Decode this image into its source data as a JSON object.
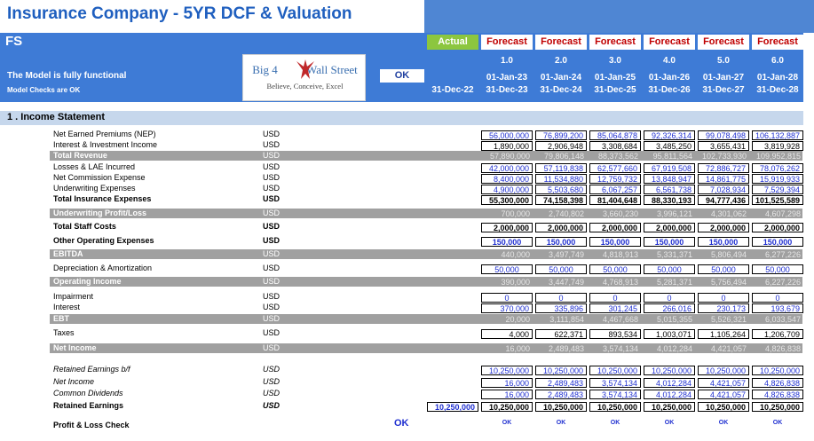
{
  "title": "Insurance Company - 5YR DCF & Valuation",
  "header": {
    "sheet": "FS",
    "model_status": "The Model is fully functional",
    "model_checks": "Model Checks are OK",
    "ok_label": "OK",
    "logo": {
      "brand_left": "Big 4",
      "brand_right": "Wall Street",
      "tagline": "Believe, Conceive, Excel",
      "icon": "eagle-icon"
    }
  },
  "columns": [
    {
      "head": "Actual",
      "period": "",
      "start": "",
      "end": "31-Dec-22",
      "kind": "actual"
    },
    {
      "head": "Forecast",
      "period": "1.0",
      "start": "01-Jan-23",
      "end": "31-Dec-23",
      "kind": "forecast"
    },
    {
      "head": "Forecast",
      "period": "2.0",
      "start": "01-Jan-24",
      "end": "31-Dec-24",
      "kind": "forecast"
    },
    {
      "head": "Forecast",
      "period": "3.0",
      "start": "01-Jan-25",
      "end": "31-Dec-25",
      "kind": "forecast"
    },
    {
      "head": "Forecast",
      "period": "4.0",
      "start": "01-Jan-26",
      "end": "31-Dec-26",
      "kind": "forecast"
    },
    {
      "head": "Forecast",
      "period": "5.0",
      "start": "01-Jan-27",
      "end": "31-Dec-27",
      "kind": "forecast"
    },
    {
      "head": "Forecast",
      "period": "6.0",
      "start": "01-Jan-28",
      "end": "31-Dec-28",
      "kind": "forecast"
    }
  ],
  "section": "1 .  Income Statement",
  "rows": [
    {
      "label": "Net Earned Premiums (NEP)",
      "unit": "USD",
      "style": "normal",
      "color": "blue",
      "values": [
        "",
        "56,000,000",
        "76,899,200",
        "85,064,878",
        "92,326,314",
        "99,078,498",
        "106,132,887"
      ]
    },
    {
      "label": "Interest & Investment Income",
      "unit": "USD",
      "style": "normal",
      "color": "black",
      "values": [
        "",
        "1,890,000",
        "2,906,948",
        "3,308,684",
        "3,485,250",
        "3,655,431",
        "3,819,928"
      ]
    },
    {
      "label": "Total Revenue",
      "unit": "USD",
      "style": "grey",
      "color": "grey",
      "values": [
        "",
        "57,890,000",
        "79,806,148",
        "88,373,562",
        "95,811,564",
        "102,733,930",
        "109,952,815"
      ]
    },
    {
      "label": "Losses & LAE Incurred",
      "unit": "USD",
      "style": "normal",
      "color": "blue",
      "values": [
        "",
        "42,000,000",
        "57,119,838",
        "62,577,660",
        "67,919,508",
        "72,886,727",
        "78,076,262"
      ]
    },
    {
      "label": "Net Commission Expense",
      "unit": "USD",
      "style": "normal",
      "color": "blue",
      "values": [
        "",
        "8,400,000",
        "11,534,880",
        "12,759,732",
        "13,848,947",
        "14,861,775",
        "15,919,933"
      ]
    },
    {
      "label": "Underwriting Expenses",
      "unit": "USD",
      "style": "normal",
      "color": "blue",
      "values": [
        "",
        "4,900,000",
        "5,503,680",
        "6,067,257",
        "6,561,738",
        "7,028,934",
        "7,529,394"
      ]
    },
    {
      "label": "Total Insurance Expenses",
      "unit": "USD",
      "style": "bold",
      "color": "black",
      "values": [
        "",
        "55,300,000",
        "74,158,398",
        "81,404,648",
        "88,330,193",
        "94,777,436",
        "101,525,589"
      ]
    },
    {
      "label": "Underwriting Profit/Loss",
      "unit": "USD",
      "style": "grey",
      "color": "grey",
      "values": [
        "",
        "700,000",
        "2,740,802",
        "3,660,230",
        "3,996,121",
        "4,301,062",
        "4,607,298"
      ]
    },
    {
      "label": "Total Staff Costs",
      "unit": "USD",
      "style": "bold",
      "color": "black",
      "values": [
        "",
        "2,000,000",
        "2,000,000",
        "2,000,000",
        "2,000,000",
        "2,000,000",
        "2,000,000"
      ]
    },
    {
      "label": "Other Operating Expenses",
      "unit": "USD",
      "style": "bold",
      "color": "blue",
      "values": [
        "",
        "150,000",
        "150,000",
        "150,000",
        "150,000",
        "150,000",
        "150,000"
      ]
    },
    {
      "label": "EBITDA",
      "unit": "USD",
      "style": "grey",
      "color": "grey",
      "values": [
        "",
        "440,000",
        "3,497,749",
        "4,818,913",
        "5,331,371",
        "5,806,494",
        "6,277,226"
      ]
    },
    {
      "label": "Depreciation & Amortization",
      "unit": "USD",
      "style": "normal",
      "color": "blue",
      "values": [
        "",
        "50,000",
        "50,000",
        "50,000",
        "50,000",
        "50,000",
        "50,000"
      ]
    },
    {
      "label": "Operating Income",
      "unit": "USD",
      "style": "grey",
      "color": "grey",
      "values": [
        "",
        "390,000",
        "3,447,749",
        "4,768,913",
        "5,281,371",
        "5,756,494",
        "6,227,226"
      ]
    },
    {
      "label": "Impairment",
      "unit": "USD",
      "style": "normal",
      "color": "blue",
      "values": [
        "",
        "0",
        "0",
        "0",
        "0",
        "0",
        "0"
      ]
    },
    {
      "label": "Interest",
      "unit": "USD",
      "style": "normal",
      "color": "blue",
      "values": [
        "",
        "370,000",
        "335,896",
        "301,245",
        "266,016",
        "230,173",
        "193,679"
      ]
    },
    {
      "label": "EBT",
      "unit": "USD",
      "style": "grey",
      "color": "grey",
      "values": [
        "",
        "20,000",
        "3,111,854",
        "4,467,668",
        "5,015,355",
        "5,526,321",
        "6,033,547"
      ]
    },
    {
      "label": "Taxes",
      "unit": "USD",
      "style": "normal",
      "color": "black",
      "values": [
        "",
        "4,000",
        "622,371",
        "893,534",
        "1,003,071",
        "1,105,264",
        "1,206,709"
      ]
    },
    {
      "label": "Net Income",
      "unit": "USD",
      "style": "grey",
      "color": "grey",
      "values": [
        "",
        "16,000",
        "2,489,483",
        "3,574,134",
        "4,012,284",
        "4,421,057",
        "4,826,838"
      ]
    },
    {
      "label": "Retained Earnings b/f",
      "unit": "USD",
      "style": "ital",
      "color": "blue",
      "values": [
        "",
        "10,250,000",
        "10,250,000",
        "10,250,000",
        "10,250,000",
        "10,250,000",
        "10,250,000"
      ]
    },
    {
      "label": "Net Income",
      "unit": "USD",
      "style": "ital",
      "color": "blue",
      "values": [
        "",
        "16,000",
        "2,489,483",
        "3,574,134",
        "4,012,284",
        "4,421,057",
        "4,826,838"
      ]
    },
    {
      "label": "Common Dividends",
      "unit": "USD",
      "style": "ital",
      "color": "blue",
      "values": [
        "",
        "16,000",
        "2,489,483",
        "3,574,134",
        "4,012,284",
        "4,421,057",
        "4,826,838"
      ]
    },
    {
      "label": "Retained Earnings",
      "unit": "USD",
      "style": "bolditalic",
      "color": "black",
      "values": [
        "10,250,000",
        "10,250,000",
        "10,250,000",
        "10,250,000",
        "10,250,000",
        "10,250,000",
        "10,250,000"
      ]
    }
  ],
  "check_row": {
    "label": "Profit & Loss Check",
    "status": "OK",
    "values": [
      "OK",
      "OK",
      "OK",
      "OK",
      "OK",
      "OK"
    ]
  },
  "colors": {
    "header_blue": "#3e7bd6",
    "actual_green": "#8cc63f",
    "forecast_red": "#c00000",
    "input_blue": "#1f2fd0",
    "section_band": "#c6d7ec",
    "subtotal_grey": "#a0a0a0"
  }
}
